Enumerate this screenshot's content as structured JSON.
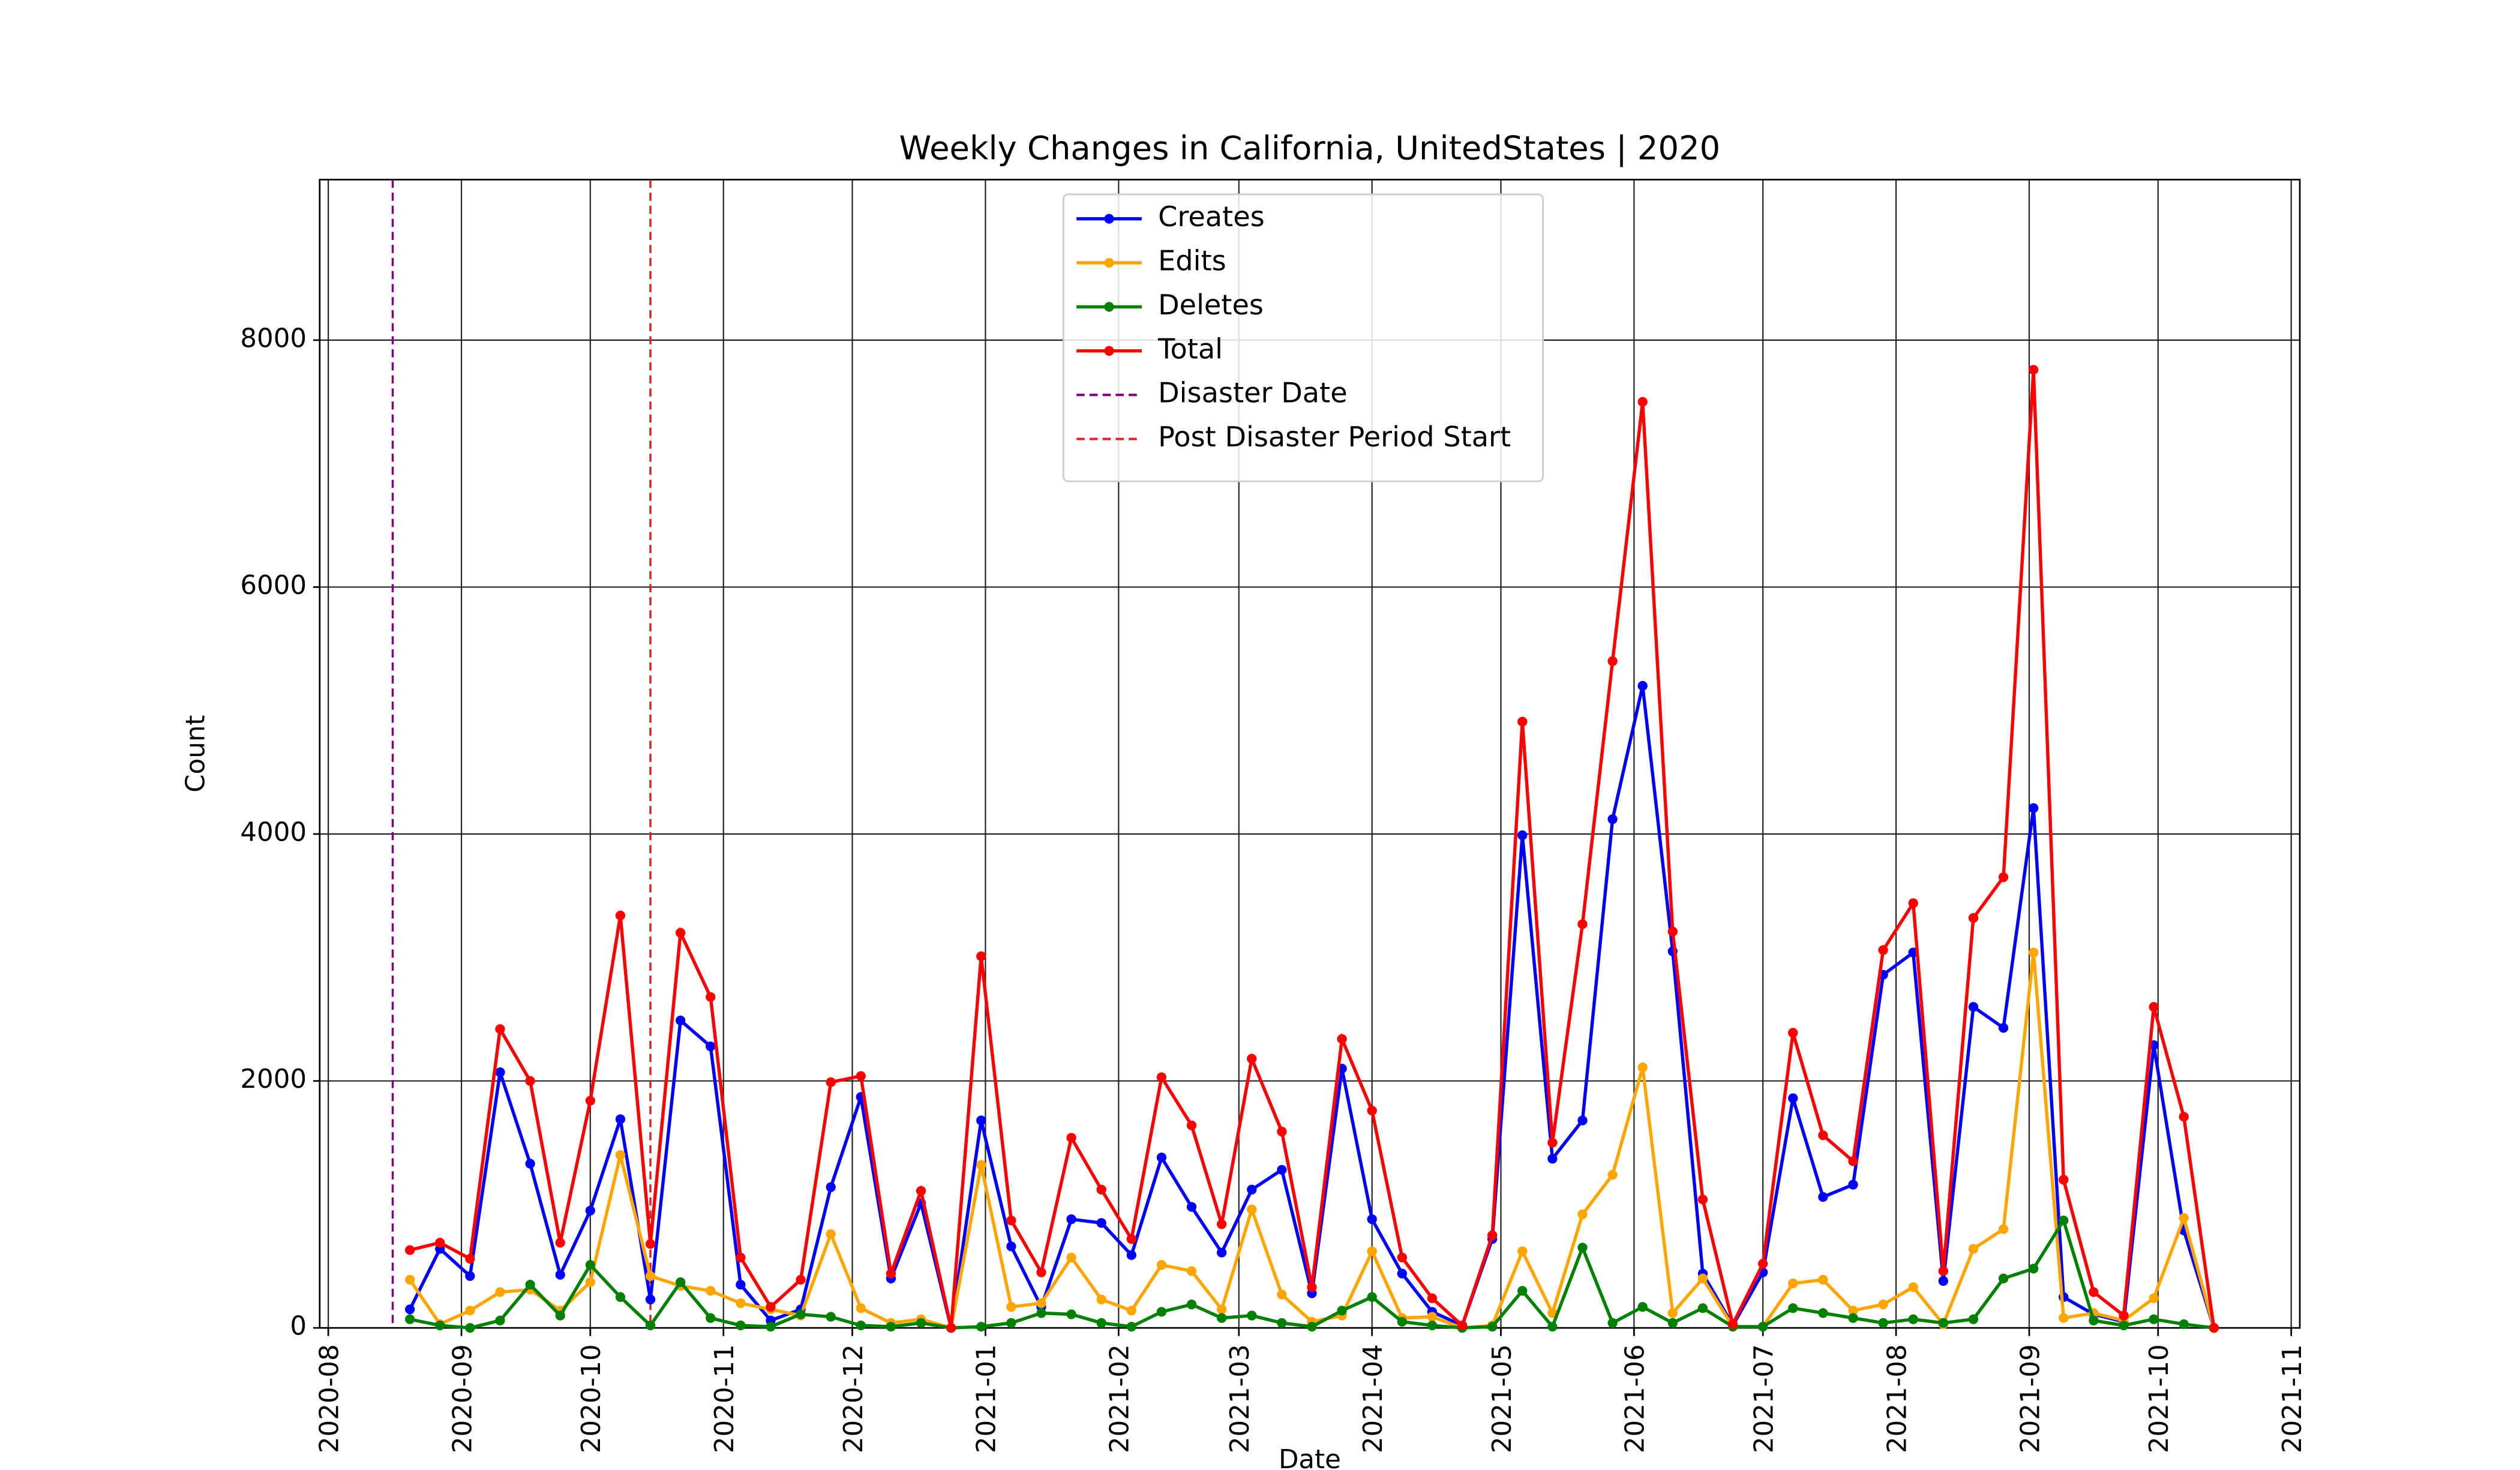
{
  "chart_data": {
    "type": "line",
    "title": "Weekly Changes in California, UnitedStates | 2020",
    "x_label": "Date",
    "y_label": "Count",
    "x": [
      "2020-08-20",
      "2020-08-27",
      "2020-09-03",
      "2020-09-10",
      "2020-09-17",
      "2020-09-24",
      "2020-10-01",
      "2020-10-08",
      "2020-10-15",
      "2020-10-22",
      "2020-10-29",
      "2020-11-05",
      "2020-11-12",
      "2020-11-19",
      "2020-11-26",
      "2020-12-03",
      "2020-12-10",
      "2020-12-17",
      "2020-12-24",
      "2020-12-31",
      "2021-01-07",
      "2021-01-14",
      "2021-01-21",
      "2021-01-28",
      "2021-02-04",
      "2021-02-11",
      "2021-02-18",
      "2021-02-25",
      "2021-03-04",
      "2021-03-11",
      "2021-03-18",
      "2021-03-25",
      "2021-04-01",
      "2021-04-08",
      "2021-04-15",
      "2021-04-22",
      "2021-04-29",
      "2021-05-06",
      "2021-05-13",
      "2021-05-20",
      "2021-05-27",
      "2021-06-03",
      "2021-06-10",
      "2021-06-17",
      "2021-06-24",
      "2021-07-01",
      "2021-07-08",
      "2021-07-15",
      "2021-07-22",
      "2021-07-29",
      "2021-08-05",
      "2021-08-12",
      "2021-08-19",
      "2021-08-26",
      "2021-09-02",
      "2021-09-09",
      "2021-09-16",
      "2021-09-23",
      "2021-09-30",
      "2021-10-07",
      "2021-10-14"
    ],
    "series": [
      {
        "name": "Creates",
        "color": "#0000ff",
        "values": [
          150,
          640,
          420,
          2070,
          1330,
          430,
          950,
          1690,
          230,
          2490,
          2280,
          350,
          60,
          150,
          1140,
          1870,
          400,
          1010,
          0,
          1680,
          660,
          170,
          880,
          850,
          590,
          1380,
          980,
          610,
          1120,
          1280,
          280,
          2100,
          880,
          440,
          130,
          20,
          720,
          3990,
          1370,
          1680,
          4120,
          5200,
          3050,
          440,
          20,
          450,
          1860,
          1060,
          1160,
          2860,
          3040,
          380,
          2600,
          2430,
          4210,
          250,
          110,
          50,
          2290,
          790,
          0
        ]
      },
      {
        "name": "Edits",
        "color": "#ffa500",
        "values": [
          390,
          30,
          140,
          290,
          310,
          140,
          370,
          1400,
          420,
          340,
          300,
          200,
          150,
          100,
          760,
          160,
          40,
          70,
          0,
          1320,
          170,
          200,
          570,
          230,
          140,
          510,
          460,
          150,
          960,
          270,
          50,
          100,
          620,
          80,
          90,
          0,
          20,
          620,
          120,
          920,
          1240,
          2110,
          120,
          400,
          10,
          10,
          360,
          390,
          140,
          190,
          330,
          30,
          640,
          800,
          3040,
          80,
          120,
          60,
          240,
          890,
          0
        ]
      },
      {
        "name": "Deletes",
        "color": "#008000",
        "values": [
          70,
          20,
          0,
          60,
          350,
          100,
          510,
          250,
          20,
          370,
          80,
          20,
          10,
          110,
          90,
          20,
          10,
          40,
          0,
          10,
          40,
          120,
          110,
          40,
          10,
          130,
          190,
          80,
          100,
          40,
          10,
          140,
          250,
          50,
          20,
          0,
          10,
          300,
          10,
          650,
          40,
          170,
          40,
          160,
          10,
          10,
          160,
          120,
          80,
          40,
          70,
          40,
          70,
          400,
          480,
          870,
          60,
          20,
          70,
          30,
          0
        ]
      },
      {
        "name": "Total",
        "color": "#ff0000",
        "values": [
          630,
          690,
          560,
          2420,
          2000,
          690,
          1840,
          3340,
          680,
          3200,
          2680,
          570,
          170,
          390,
          1990,
          2040,
          440,
          1110,
          0,
          3010,
          870,
          450,
          1540,
          1120,
          720,
          2030,
          1640,
          840,
          2180,
          1590,
          330,
          2340,
          1760,
          570,
          240,
          20,
          750,
          4910,
          1500,
          3270,
          5400,
          7500,
          3210,
          1040,
          30,
          520,
          2390,
          1560,
          1350,
          3060,
          3440,
          460,
          3320,
          3650,
          7760,
          1200,
          290,
          100,
          2600,
          1710,
          0
        ]
      }
    ],
    "vlines": [
      {
        "name": "Disaster Date",
        "x": "2020-08-16",
        "color": "#800080"
      },
      {
        "name": "Post Disaster Period Start",
        "x": "2020-10-15",
        "color": "#d62728"
      }
    ],
    "xlim": [
      "2020-07-30",
      "2021-11-03"
    ],
    "xticks": [
      "2020-08",
      "2020-09",
      "2020-10",
      "2020-11",
      "2020-12",
      "2021-01",
      "2021-02",
      "2021-03",
      "2021-04",
      "2021-05",
      "2021-06",
      "2021-07",
      "2021-08",
      "2021-09",
      "2021-10",
      "2021-11"
    ],
    "ylim": [
      0,
      9300
    ],
    "yticks": [
      0,
      2000,
      4000,
      6000,
      8000
    ],
    "grid": true,
    "legend": "upper center"
  }
}
